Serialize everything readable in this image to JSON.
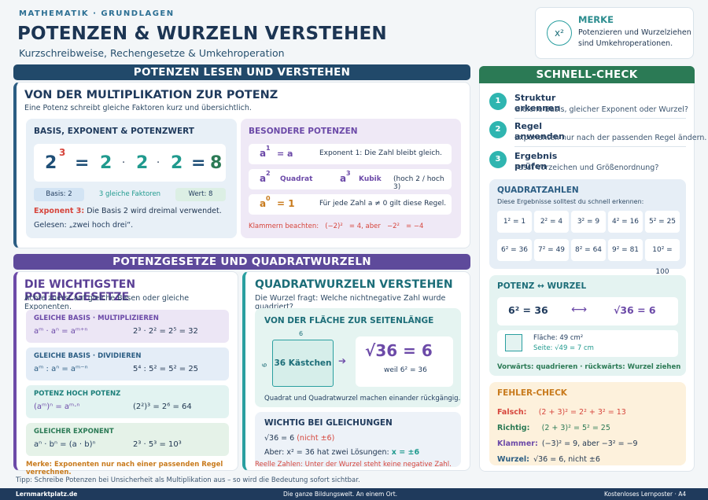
{
  "header": {
    "kicker": "MATHEMATIK · GRUNDLAGEN",
    "title": "POTENZEN & WURZELN VERSTEHEN",
    "subtitle": "Kurzschreibweise, Rechengesetze & Umkehroperation",
    "merke_title": "MERKE",
    "merke_icon": "x²",
    "merke_text": "Potenzieren und Wurzelziehen sind Umkehroperationen."
  },
  "section1": {
    "bar": "POTENZEN LESEN UND VERSTEHEN",
    "heading": "VON DER MULTIPLIKATION ZUR POTENZ",
    "sub": "Eine Potenz schreibt gleiche Faktoren kurz und übersichtlich.",
    "basis_title": "BASIS, EXPONENT & POTENZWERT",
    "eq_base": "2",
    "eq_exp": "3",
    "eq_eq": "=",
    "eq_f1": "2",
    "eq_dot1": "·",
    "eq_f2": "2",
    "eq_dot2": "·",
    "eq_f3": "2",
    "eq_eq2": "=",
    "eq_res": "8",
    "chip_basis": "Basis: 2",
    "chip_factors": "3 gleiche Faktoren",
    "chip_wert": "Wert: 8",
    "exp_label": "Exponent 3:",
    "exp_text": "Die Basis 2 wird dreimal verwendet.",
    "gelesen": "Gelesen: „zwei hoch drei“.",
    "besondere_title": "BESONDERE POTENZEN",
    "r1_a": "a",
    "r1_e": "1",
    "r1_eq": "= a",
    "r1_t": "Exponent 1: Die Zahl bleibt gleich.",
    "r2_a": "a",
    "r2_e": "2",
    "r2_l": "Quadrat",
    "r2_a2": "a",
    "r2_e2": "3",
    "r2_l2": "Kubik",
    "r2_t": "(hoch 2 / hoch 3)",
    "r3_a": "a",
    "r3_e": "0",
    "r3_eq": "= 1",
    "r3_t": "Für jede Zahl a ≠ 0 gilt diese Regel.",
    "klammer_label": "Klammern beachten:",
    "klammer_1": "(−2)²",
    "klammer_2": "= 4, aber",
    "klammer_3": "−2²",
    "klammer_4": "= −4"
  },
  "section2": {
    "bar": "POTENZGESETZE UND QUADRATWURZELN",
    "heading": "DIE WICHTIGSTEN POTENZGESETZE",
    "sub": "Achte zuerst auf gleiche Basen oder gleiche Exponenten.",
    "laws": [
      {
        "title": "GLEICHE BASIS · MULTIPLIZIEREN",
        "rule": "aᵐ · aⁿ = aᵐ⁺ⁿ",
        "ex": "2³ · 2² = 2⁵ = 32"
      },
      {
        "title": "GLEICHE BASIS · DIVIDIEREN",
        "rule": "aᵐ : aⁿ = aᵐ⁻ⁿ",
        "ex": "5⁴ : 5² = 5² = 25"
      },
      {
        "title": "POTENZ HOCH POTENZ",
        "rule": "(aᵐ)ⁿ = aᵐ·ⁿ",
        "ex": "(2²)³ = 2⁶ = 64"
      },
      {
        "title": "GLEICHER EXPONENT",
        "rule": "aⁿ · bⁿ = (a · b)ⁿ",
        "ex": "2³ · 5³ = 10³"
      }
    ],
    "merke": "Merke: Exponenten nur nach einer passenden Regel verrechnen.",
    "wurzel_heading": "QUADRATWURZELN VERSTEHEN",
    "wurzel_sub": "Die Wurzel fragt: Welche nichtnegative Zahl wurde quadriert?",
    "flaeche_title": "VON DER FLÄCHE ZUR SEITENLÄNGE",
    "side_top": "6",
    "side_left": "6",
    "kaestchen": "36 Kästchen",
    "big_root": "√36 = 6",
    "weil": "weil 6² = 36",
    "flaeche_note": "Quadrat und Quadratwurzel machen einander rückgängig.",
    "gleich_title": "WICHTIG BEI GLEICHUNGEN",
    "g1": "√36 = 6",
    "g1_red": "(nicht ±6)",
    "g2": "Aber: x² = 36 hat zwei Lösungen:",
    "g2_teal": "x = ±6",
    "reelle": "Reelle Zahlen: Unter der Wurzel steht keine negative Zahl."
  },
  "right": {
    "bar": "SCHNELL-CHECK",
    "steps": [
      {
        "n": "1",
        "title": "Struktur erkennen",
        "text": "Gleiche Basis, gleicher Exponent oder Wurzel?"
      },
      {
        "n": "2",
        "title": "Regel anwenden",
        "text": "Exponenten nur nach der passenden Regel ändern."
      },
      {
        "n": "3",
        "title": "Ergebnis prüfen",
        "text": "Passt Vorzeichen und Größenordnung?"
      }
    ],
    "quad_title": "QUADRATZAHLEN",
    "quad_sub": "Diese Ergebnisse solltest du schnell erkennen:",
    "quad": [
      "1² = 1",
      "2² = 4",
      "3² = 9",
      "4² = 16",
      "5² = 25",
      "6² = 36",
      "7² = 49",
      "8² = 64",
      "9² = 81",
      "10² = 100"
    ],
    "pw_title": "POTENZ ↔ WURZEL",
    "pw_left": "6² = 36",
    "pw_right": "√36 = 6",
    "pw_flaeche": "Fläche: 49 cm²",
    "pw_seite": "Seite: √49 = 7 cm",
    "pw_note": "Vorwärts: quadrieren · rückwärts: Wurzel ziehen",
    "fehler_title": "FEHLER-CHECK",
    "f_falsch_l": "Falsch:",
    "f_falsch_v": "(2 + 3)² = 2² + 3² = 13",
    "f_richtig_l": "Richtig:",
    "f_richtig_v": "(2 + 3)² = 5² = 25",
    "f_klammer_l": "Klammer:",
    "f_klammer_v": "(−3)² = 9, aber −3² = −9",
    "f_wurzel_l": "Wurzel:",
    "f_wurzel_v": "√36 = 6, nicht ±6"
  },
  "footer": {
    "tipp": "Tipp: Schreibe Potenzen bei Unsicherheit als Multiplikation aus – so wird die Bedeutung sofort sichtbar.",
    "left": "Lernmarktplatz.de",
    "center": "Die ganze Bildungswelt. An einem Ort.",
    "right": "Kostenloses Lernposter · A4"
  }
}
